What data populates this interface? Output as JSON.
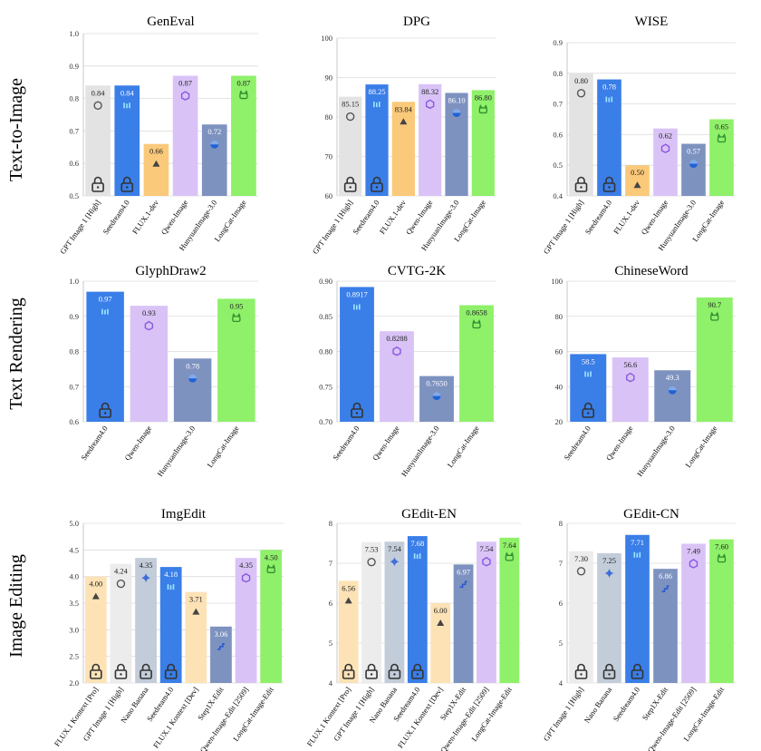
{
  "row_labels": [
    "Text-to-Image",
    "Text Rendering",
    "Image Editing"
  ],
  "colors": {
    "gray": "#e3e3e3",
    "blue": "#3a7ee8",
    "orange": "#fbc97a",
    "purple": "#d9c3f6",
    "slate": "#7e92c0",
    "green": "#8ff06a",
    "cream": "#fde2b6",
    "light_gray": "#ececec",
    "gray_blue": "#c3ccd9"
  },
  "chart_data": [
    {
      "type": "bar",
      "title": "GenEval",
      "categories": [
        "GPT Image 1 [High]",
        "Seedream4.0",
        "FLUX.1-dev",
        "Qwen-Image",
        "HunyuanImage-3.0",
        "LongCat-Image"
      ],
      "values": [
        0.84,
        0.84,
        0.66,
        0.87,
        0.72,
        0.87
      ],
      "labels": [
        "0.84",
        "0.84",
        "0.66",
        "0.87",
        "0.72",
        "0.87"
      ],
      "colors": [
        "gray",
        "blue",
        "orange",
        "purple",
        "slate",
        "green"
      ],
      "icons": [
        "openai-icon",
        "seedream-icon",
        "flux-icon",
        "qwen-icon",
        "hunyuan-icon",
        "longcat-icon"
      ],
      "closed_source": [
        true,
        true,
        false,
        false,
        false,
        false
      ],
      "ylim": [
        0.5,
        1.0
      ],
      "yticks": [
        "0.5",
        "0.6",
        "0.7",
        "0.8",
        "0.9",
        "1.0"
      ]
    },
    {
      "type": "bar",
      "title": "DPG",
      "categories": [
        "GPT Image 1 [High]",
        "Seedream4.0",
        "FLUX.1-dev",
        "Qwen-Image",
        "HunyuanImage-3.0",
        "LongCat-Image"
      ],
      "values": [
        85.15,
        88.25,
        83.84,
        88.32,
        86.1,
        86.8
      ],
      "labels": [
        "85.15",
        "88.25",
        "83.84",
        "88.32",
        "86.10",
        "86.80"
      ],
      "colors": [
        "gray",
        "blue",
        "orange",
        "purple",
        "slate",
        "green"
      ],
      "icons": [
        "openai-icon",
        "seedream-icon",
        "flux-icon",
        "qwen-icon",
        "hunyuan-icon",
        "longcat-icon"
      ],
      "closed_source": [
        true,
        true,
        false,
        false,
        false,
        false
      ],
      "ylim": [
        60,
        100
      ],
      "yticks": [
        "60",
        "70",
        "80",
        "90",
        "100"
      ]
    },
    {
      "type": "bar",
      "title": "WISE",
      "categories": [
        "GPT Image 1 [High]",
        "Seedream4.0",
        "FLUX.1-dev",
        "Qwen-Image",
        "HunyuanImage-3.0",
        "LongCat-Image"
      ],
      "values": [
        0.8,
        0.78,
        0.5,
        0.62,
        0.57,
        0.65
      ],
      "labels": [
        "0.80",
        "0.78",
        "0.50",
        "0.62",
        "0.57",
        "0.65"
      ],
      "colors": [
        "gray",
        "blue",
        "orange",
        "purple",
        "slate",
        "green"
      ],
      "icons": [
        "openai-icon",
        "seedream-icon",
        "flux-icon",
        "qwen-icon",
        "hunyuan-icon",
        "longcat-icon"
      ],
      "closed_source": [
        true,
        true,
        false,
        false,
        false,
        false
      ],
      "ylim": [
        0.4,
        0.9
      ],
      "yticks": [
        "0.4",
        "0.5",
        "0.6",
        "0.7",
        "0.8",
        "0.9"
      ]
    },
    {
      "type": "bar",
      "title": "GlyphDraw2",
      "categories": [
        "Seedream4.0",
        "Qwen-Image",
        "HunyuanImage-3.0",
        "LongCat-Image"
      ],
      "values": [
        0.97,
        0.93,
        0.78,
        0.95
      ],
      "labels": [
        "0.97",
        "0.93",
        "0.78",
        "0.95"
      ],
      "colors": [
        "blue",
        "purple",
        "slate",
        "green"
      ],
      "icons": [
        "seedream-icon",
        "qwen-icon",
        "hunyuan-icon",
        "longcat-icon"
      ],
      "closed_source": [
        true,
        false,
        false,
        false
      ],
      "ylim": [
        0.6,
        1.0
      ],
      "yticks": [
        "0.6",
        "0.7",
        "0.8",
        "0.9",
        "1.0"
      ]
    },
    {
      "type": "bar",
      "title": "CVTG-2K",
      "categories": [
        "Seedream4.0",
        "Qwen-Image",
        "HunyuanImage-3.0",
        "LongCat-Image"
      ],
      "values": [
        0.8917,
        0.8288,
        0.765,
        0.8658
      ],
      "labels": [
        "0.8917",
        "0.8288",
        "0.7650",
        "0.8658"
      ],
      "colors": [
        "blue",
        "purple",
        "slate",
        "green"
      ],
      "icons": [
        "seedream-icon",
        "qwen-icon",
        "hunyuan-icon",
        "longcat-icon"
      ],
      "closed_source": [
        true,
        false,
        false,
        false
      ],
      "ylim": [
        0.7,
        0.9
      ],
      "yticks": [
        "0.70",
        "0.75",
        "0.80",
        "0.85",
        "0.90"
      ]
    },
    {
      "type": "bar",
      "title": "ChineseWord",
      "categories": [
        "Seedream4.0",
        "Qwen-Image",
        "HunyuanImage-3.0",
        "LongCat-Image"
      ],
      "values": [
        58.5,
        56.6,
        49.3,
        90.7
      ],
      "labels": [
        "58.5",
        "56.6",
        "49.3",
        "90.7"
      ],
      "colors": [
        "blue",
        "purple",
        "slate",
        "green"
      ],
      "icons": [
        "seedream-icon",
        "qwen-icon",
        "hunyuan-icon",
        "longcat-icon"
      ],
      "closed_source": [
        true,
        false,
        false,
        false
      ],
      "ylim": [
        20,
        100
      ],
      "yticks": [
        "20",
        "40",
        "60",
        "80",
        "100"
      ]
    },
    {
      "type": "bar",
      "title": "ImgEdit",
      "categories": [
        "FLUX.1 Kontext [Pro]",
        "GPT Image 1 [High]",
        "Nano Banana",
        "Seedream4.0",
        "FLUX.1 Kontext [Dev]",
        "Step1X-Edit",
        "Qwen-Image-Edit [2509]",
        "LongCat-Image-Edit"
      ],
      "values": [
        4.0,
        4.24,
        4.35,
        4.18,
        3.71,
        3.06,
        4.35,
        4.5
      ],
      "labels": [
        "4.00",
        "4.24",
        "4.35",
        "4.18",
        "3.71",
        "3.06",
        "4.35",
        "4.50"
      ],
      "colors": [
        "cream",
        "light_gray",
        "gray_blue",
        "blue",
        "cream",
        "slate",
        "purple",
        "green"
      ],
      "icons": [
        "flux-icon",
        "openai-icon",
        "gemini-icon",
        "seedream-icon",
        "flux-icon",
        "stepfun-icon",
        "qwen-icon",
        "longcat-icon"
      ],
      "closed_source": [
        true,
        true,
        true,
        true,
        false,
        false,
        false,
        false
      ],
      "ylim": [
        2.0,
        5.0
      ],
      "yticks": [
        "2.0",
        "2.5",
        "3.0",
        "3.5",
        "4.0",
        "4.5",
        "5.0"
      ]
    },
    {
      "type": "bar",
      "title": "GEdit-EN",
      "categories": [
        "FLUX.1 Kontext [Pro]",
        "GPT Image 1 [High]",
        "Nano Banana",
        "Seedream4.0",
        "FLUX.1 Kontext [Dev]",
        "Step1X-Edit",
        "Qwen-Image-Edit [2509]",
        "LongCat-Image-Edit"
      ],
      "values": [
        6.56,
        7.53,
        7.54,
        7.68,
        6.0,
        6.97,
        7.54,
        7.64
      ],
      "labels": [
        "6.56",
        "7.53",
        "7.54",
        "7.68",
        "6.00",
        "6.97",
        "7.54",
        "7.64"
      ],
      "colors": [
        "cream",
        "light_gray",
        "gray_blue",
        "blue",
        "cream",
        "slate",
        "purple",
        "green"
      ],
      "icons": [
        "flux-icon",
        "openai-icon",
        "gemini-icon",
        "seedream-icon",
        "flux-icon",
        "stepfun-icon",
        "qwen-icon",
        "longcat-icon"
      ],
      "closed_source": [
        true,
        true,
        true,
        true,
        false,
        false,
        false,
        false
      ],
      "ylim": [
        4,
        8
      ],
      "yticks": [
        "4",
        "5",
        "6",
        "7",
        "8"
      ]
    },
    {
      "type": "bar",
      "title": "GEdit-CN",
      "categories": [
        "GPT Image 1 [High]",
        "Nano Banana",
        "Seedream4.0",
        "Step1X-Edit",
        "Qwen-Image-Edit [2509]",
        "LongCat-Image-Edit"
      ],
      "values": [
        7.3,
        7.25,
        7.71,
        6.86,
        7.49,
        7.6
      ],
      "labels": [
        "7.30",
        "7.25",
        "7.71",
        "6.86",
        "7.49",
        "7.60"
      ],
      "colors": [
        "light_gray",
        "gray_blue",
        "blue",
        "slate",
        "purple",
        "green"
      ],
      "icons": [
        "openai-icon",
        "gemini-icon",
        "seedream-icon",
        "stepfun-icon",
        "qwen-icon",
        "longcat-icon"
      ],
      "closed_source": [
        true,
        true,
        true,
        false,
        false,
        false
      ],
      "ylim": [
        4,
        8
      ],
      "yticks": [
        "4",
        "5",
        "6",
        "7",
        "8"
      ]
    }
  ]
}
